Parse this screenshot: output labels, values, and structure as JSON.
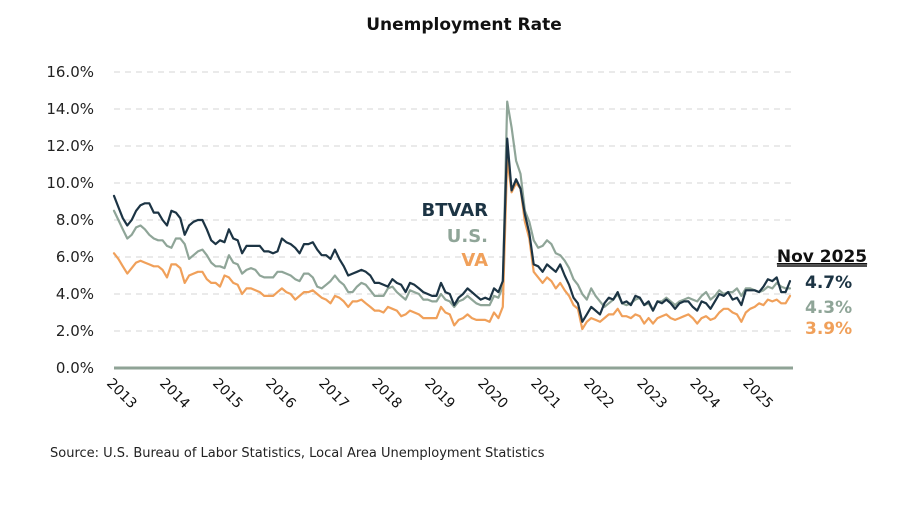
{
  "chart_data": {
    "type": "line",
    "title": "Unemployment Rate",
    "xlabel": "",
    "ylabel": "",
    "ylim": [
      0,
      16
    ],
    "y_ticks": [
      "0.0%",
      "2.0%",
      "4.0%",
      "6.0%",
      "8.0%",
      "10.0%",
      "12.0%",
      "14.0%",
      "16.0%"
    ],
    "y_tick_values": [
      0,
      2,
      4,
      6,
      8,
      10,
      12,
      14,
      16
    ],
    "x_ticks": [
      "2013",
      "2014",
      "2015",
      "2016",
      "2017",
      "2018",
      "2019",
      "2020",
      "2021",
      "2022",
      "2023",
      "2024",
      "2025"
    ],
    "x_start": "Jan 2013",
    "x_end": "Nov 2025",
    "frequency": "monthly",
    "grid": true,
    "series": [
      {
        "name": "BTVAR",
        "color": "#1c3444",
        "values": [
          9.3,
          8.7,
          8.1,
          7.7,
          8.0,
          8.5,
          8.8,
          8.9,
          8.9,
          8.4,
          8.4,
          8.0,
          7.7,
          8.5,
          8.4,
          8.1,
          7.2,
          7.7,
          7.9,
          8.0,
          8.0,
          7.5,
          6.9,
          6.7,
          6.9,
          6.8,
          7.5,
          7.0,
          6.9,
          6.2,
          6.6,
          6.6,
          6.6,
          6.6,
          6.3,
          6.3,
          6.2,
          6.3,
          7.0,
          6.8,
          6.7,
          6.5,
          6.2,
          6.7,
          6.7,
          6.8,
          6.4,
          6.1,
          6.1,
          5.9,
          6.4,
          5.9,
          5.5,
          5.0,
          5.1,
          5.2,
          5.3,
          5.2,
          5.0,
          4.6,
          4.6,
          4.5,
          4.4,
          4.8,
          4.6,
          4.5,
          4.1,
          4.6,
          4.5,
          4.3,
          4.1,
          4.0,
          3.9,
          3.9,
          4.6,
          4.1,
          4.0,
          3.4,
          3.8,
          4.0,
          4.3,
          4.1,
          3.9,
          3.7,
          3.8,
          3.7,
          4.3,
          4.1,
          4.7,
          12.4,
          9.6,
          10.2,
          9.7,
          8.3,
          7.3,
          5.6,
          5.5,
          5.2,
          5.6,
          5.4,
          5.2,
          5.6,
          5.0,
          4.5,
          3.8,
          3.5,
          2.5,
          2.9,
          3.3,
          3.1,
          2.9,
          3.5,
          3.8,
          3.7,
          4.1,
          3.5,
          3.6,
          3.4,
          3.9,
          3.8,
          3.4,
          3.6,
          3.1,
          3.6,
          3.5,
          3.7,
          3.5,
          3.2,
          3.5,
          3.6,
          3.6,
          3.3,
          3.1,
          3.6,
          3.5,
          3.2,
          3.6,
          4.0,
          3.9,
          4.1,
          3.7,
          3.8,
          3.4,
          4.2,
          4.2,
          4.2,
          4.1,
          4.4,
          4.8,
          4.7,
          4.9,
          4.1,
          4.1,
          4.7
        ]
      },
      {
        "name": "U.S.",
        "color": "#8fa598",
        "values": [
          8.5,
          8.0,
          7.5,
          7.0,
          7.2,
          7.6,
          7.7,
          7.5,
          7.2,
          7.0,
          6.9,
          6.9,
          6.6,
          6.5,
          7.0,
          7.0,
          6.7,
          5.9,
          6.1,
          6.3,
          6.4,
          6.1,
          5.7,
          5.5,
          5.5,
          5.4,
          6.1,
          5.7,
          5.6,
          5.1,
          5.3,
          5.4,
          5.3,
          5.0,
          4.9,
          4.9,
          4.9,
          5.2,
          5.2,
          5.1,
          5.0,
          4.8,
          4.7,
          5.1,
          5.1,
          4.9,
          4.4,
          4.3,
          4.5,
          4.7,
          5.0,
          4.7,
          4.5,
          4.1,
          4.1,
          4.4,
          4.6,
          4.5,
          4.2,
          3.9,
          3.9,
          3.9,
          4.3,
          4.4,
          4.1,
          3.9,
          3.7,
          4.2,
          4.1,
          4.0,
          3.7,
          3.7,
          3.6,
          3.6,
          4.0,
          3.7,
          3.6,
          3.3,
          3.6,
          3.7,
          3.9,
          3.7,
          3.5,
          3.4,
          3.4,
          3.4,
          3.9,
          3.8,
          4.4,
          14.4,
          13.0,
          11.2,
          10.5,
          8.5,
          7.9,
          6.9,
          6.5,
          6.6,
          6.9,
          6.7,
          6.2,
          6.1,
          5.8,
          5.4,
          4.8,
          4.5,
          4.0,
          3.7,
          4.3,
          3.9,
          3.6,
          3.3,
          3.5,
          3.7,
          4.0,
          3.5,
          3.4,
          3.5,
          3.7,
          3.8,
          3.4,
          3.5,
          3.1,
          3.6,
          3.6,
          3.8,
          3.6,
          3.4,
          3.6,
          3.7,
          3.8,
          3.7,
          3.6,
          3.9,
          4.1,
          3.7,
          3.9,
          4.2,
          4.0,
          4.1,
          4.1,
          4.3,
          3.9,
          4.3,
          4.3,
          4.2,
          4.1,
          4.2,
          4.4,
          4.3,
          4.6,
          4.4,
          4.3,
          4.3
        ]
      },
      {
        "name": "VA",
        "color": "#f0a05a",
        "values": [
          6.2,
          5.9,
          5.5,
          5.1,
          5.4,
          5.7,
          5.8,
          5.7,
          5.6,
          5.5,
          5.5,
          5.3,
          4.9,
          5.6,
          5.6,
          5.4,
          4.6,
          5.0,
          5.1,
          5.2,
          5.2,
          4.8,
          4.6,
          4.6,
          4.4,
          5.0,
          4.9,
          4.6,
          4.5,
          4.0,
          4.3,
          4.3,
          4.2,
          4.1,
          3.9,
          3.9,
          3.9,
          4.1,
          4.3,
          4.1,
          4.0,
          3.7,
          3.9,
          4.1,
          4.1,
          4.2,
          4.0,
          3.8,
          3.7,
          3.5,
          3.9,
          3.8,
          3.6,
          3.3,
          3.6,
          3.6,
          3.7,
          3.5,
          3.3,
          3.1,
          3.1,
          3.0,
          3.3,
          3.2,
          3.1,
          2.8,
          2.9,
          3.1,
          3.0,
          2.9,
          2.7,
          2.7,
          2.7,
          2.7,
          3.3,
          3.0,
          2.9,
          2.3,
          2.6,
          2.7,
          2.9,
          2.7,
          2.6,
          2.6,
          2.6,
          2.5,
          3.0,
          2.7,
          3.3,
          11.3,
          9.5,
          10.0,
          9.7,
          7.9,
          7.0,
          5.2,
          4.9,
          4.6,
          4.9,
          4.7,
          4.3,
          4.6,
          4.2,
          3.9,
          3.4,
          3.2,
          2.1,
          2.5,
          2.7,
          2.6,
          2.5,
          2.7,
          2.9,
          2.9,
          3.2,
          2.8,
          2.8,
          2.7,
          2.9,
          2.8,
          2.4,
          2.7,
          2.4,
          2.7,
          2.8,
          2.9,
          2.7,
          2.6,
          2.7,
          2.8,
          2.9,
          2.7,
          2.4,
          2.7,
          2.8,
          2.6,
          2.7,
          3.0,
          3.2,
          3.2,
          3.0,
          2.9,
          2.5,
          3.0,
          3.2,
          3.3,
          3.5,
          3.4,
          3.7,
          3.6,
          3.7,
          3.5,
          3.5,
          3.9
        ]
      }
    ],
    "legend": [
      {
        "label": "BTVAR",
        "color": "#1c3444"
      },
      {
        "label": "U.S.",
        "color": "#8fa598"
      },
      {
        "label": "VA",
        "color": "#f0a05a"
      }
    ],
    "legend_placement": "center (inline, left of 2020 spike)",
    "end_labels": {
      "date": "Nov 2025",
      "values": [
        {
          "series": "BTVAR",
          "text": "4.7%",
          "color": "#1c3444"
        },
        {
          "series": "U.S.",
          "text": "4.3%",
          "color": "#8fa598"
        },
        {
          "series": "VA",
          "text": "3.9%",
          "color": "#f0a05a"
        }
      ]
    },
    "source": "Source: U.S. Bureau of Labor Statistics, Local Area Unemployment Statistics",
    "baseline_color": "#8fa396",
    "grid_color": "#d6d6d6"
  }
}
